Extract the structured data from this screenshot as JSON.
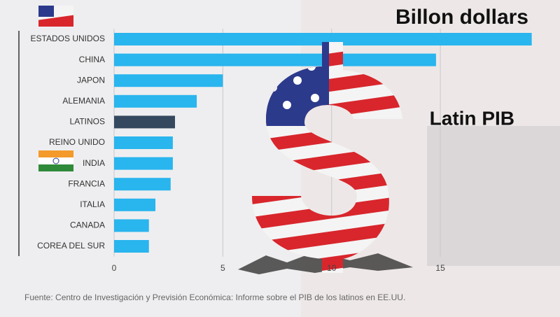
{
  "chart_data": {
    "type": "bar",
    "orientation": "horizontal",
    "title": "Billon dollars",
    "subtitle": "Latin PIB",
    "source": "Fuente: Centro de Investigación y Previsión Económica: Informe sobre el PIB de los latinos en EE.UU.",
    "categories": [
      "ESTADOS UNIDOS",
      "CHINA",
      "JAPON",
      "ALEMANIA",
      "LATINOS",
      "REINO UNIDO",
      "INDIA",
      "FRANCIA",
      "ITALIA",
      "CANADA",
      "COREA DEL SUR"
    ],
    "values": [
      19.2,
      14.8,
      5.0,
      3.8,
      2.8,
      2.7,
      2.7,
      2.6,
      1.9,
      1.6,
      1.6
    ],
    "colors": [
      "#29b5ee",
      "#29b5ee",
      "#29b5ee",
      "#29b5ee",
      "#34495e",
      "#29b5ee",
      "#29b5ee",
      "#29b5ee",
      "#29b5ee",
      "#29b5ee",
      "#29b5ee"
    ],
    "xlim": [
      0,
      20.5
    ],
    "xticks": [
      0,
      5,
      10,
      15
    ],
    "grid": true
  }
}
